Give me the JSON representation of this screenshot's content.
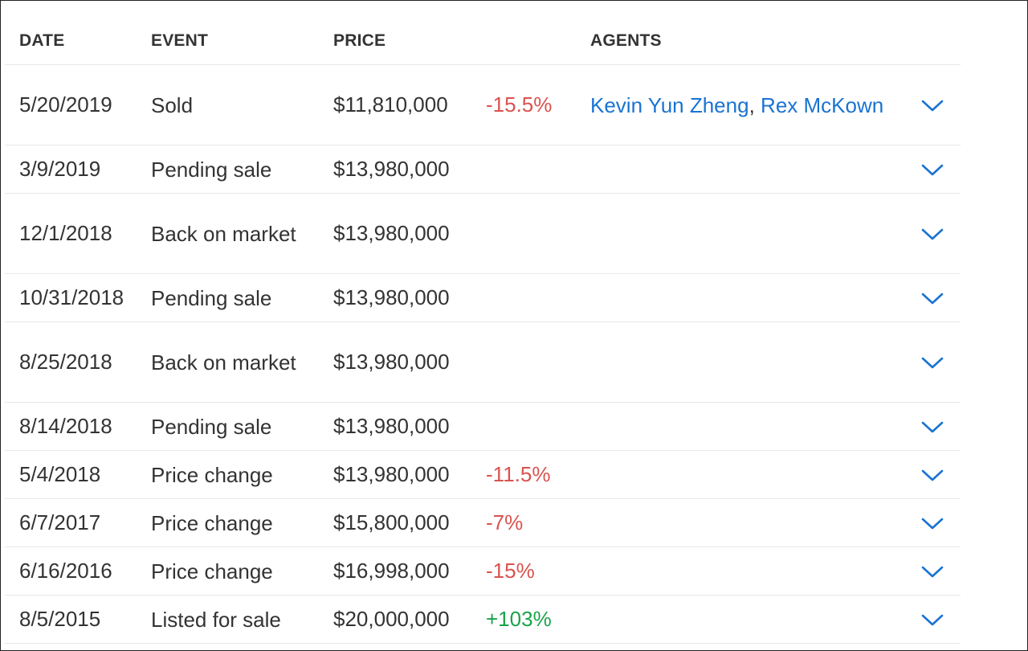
{
  "header": {
    "date": "DATE",
    "event": "EVENT",
    "price": "PRICE",
    "agents": "AGENTS"
  },
  "rows": [
    {
      "date": "5/20/2019",
      "event": "Sold",
      "price": "$11,810,000",
      "change": "-15.5%",
      "change_type": "negative",
      "agents": [
        "Kevin Yun Zheng",
        "Rex McKown"
      ],
      "separator": ","
    },
    {
      "date": "3/9/2019",
      "event": "Pending sale",
      "price": "$13,980,000",
      "change": "",
      "change_type": "none"
    },
    {
      "date": "12/1/2018",
      "event": "Back on market",
      "price": "$13,980,000",
      "change": "",
      "change_type": "none"
    },
    {
      "date": "10/31/2018",
      "event": "Pending sale",
      "price": "$13,980,000",
      "change": "",
      "change_type": "none"
    },
    {
      "date": "8/25/2018",
      "event": "Back on market",
      "price": "$13,980,000",
      "change": "",
      "change_type": "none"
    },
    {
      "date": "8/14/2018",
      "event": "Pending sale",
      "price": "$13,980,000",
      "change": "",
      "change_type": "none"
    },
    {
      "date": "5/4/2018",
      "event": "Price change",
      "price": "$13,980,000",
      "change": "-11.5%",
      "change_type": "negative"
    },
    {
      "date": "6/7/2017",
      "event": "Price change",
      "price": "$15,800,000",
      "change": "-7%",
      "change_type": "negative"
    },
    {
      "date": "6/16/2016",
      "event": "Price change",
      "price": "$16,998,000",
      "change": "-15%",
      "change_type": "negative"
    },
    {
      "date": "8/5/2015",
      "event": "Listed for sale",
      "price": "$20,000,000",
      "change": "+103%",
      "change_type": "positive"
    }
  ],
  "icons": {
    "expand": "chevron-down-icon"
  },
  "colors": {
    "link": "#1a73d2",
    "negative": "#d9534f",
    "positive": "#1aa34a",
    "divider": "#e8e8e8",
    "text": "#333333"
  }
}
